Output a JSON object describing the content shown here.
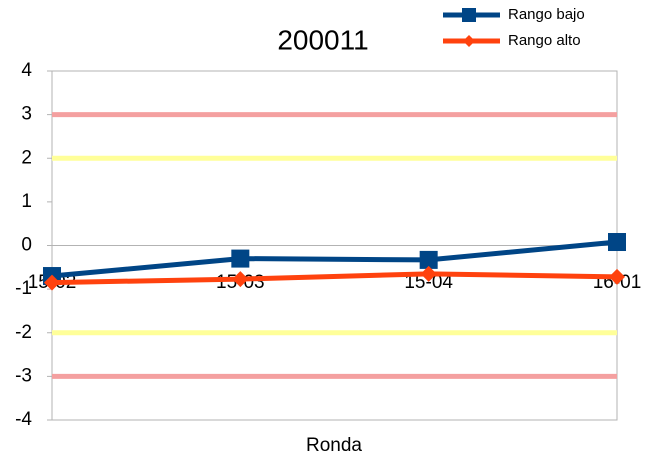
{
  "chart_data": {
    "type": "line",
    "title": "200011",
    "x_label": "Ronda",
    "categories": [
      "15-02",
      "15-03",
      "15-04",
      "16-01"
    ],
    "series": [
      {
        "name": "Rango bajo",
        "color": "#004586",
        "marker": "square",
        "values": [
          -0.7,
          -0.3,
          -0.33,
          0.08
        ]
      },
      {
        "name": "Rango alto",
        "color": "#ff420e",
        "marker": "diamond",
        "values": [
          -0.85,
          -0.77,
          -0.65,
          -0.72
        ]
      }
    ],
    "reference_lines": [
      {
        "value": 3,
        "color": "#f4a0a0"
      },
      {
        "value": 2,
        "color": "#ffff99"
      },
      {
        "value": -2,
        "color": "#ffff99"
      },
      {
        "value": -3,
        "color": "#f4a0a0"
      }
    ],
    "ylim": [
      -4,
      4
    ],
    "yticks": [
      -4,
      -3,
      -2,
      -1,
      0,
      1,
      2,
      3,
      4
    ],
    "legend": "top-right"
  }
}
